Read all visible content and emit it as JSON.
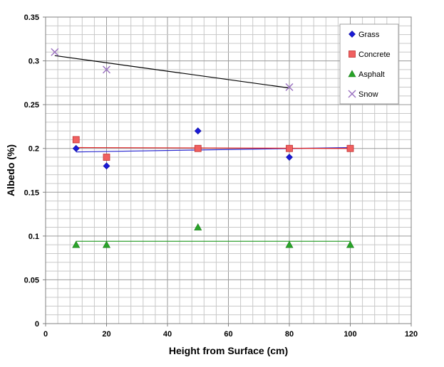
{
  "chart_data": {
    "type": "scatter",
    "title": "",
    "xlabel": "Height from Surface (cm)",
    "ylabel": "Albedo (%)",
    "xlim": [
      0,
      120
    ],
    "ylim": [
      0,
      0.35
    ],
    "x_major_ticks": [
      0,
      20,
      40,
      60,
      80,
      100,
      120
    ],
    "y_major_ticks": [
      0,
      0.05,
      0.1,
      0.15,
      0.2,
      0.25,
      0.3,
      0.35
    ],
    "x_tick_labels": [
      "0",
      "20",
      "40",
      "60",
      "80",
      "100",
      "120"
    ],
    "y_tick_labels": [
      "0",
      "0.05",
      "0.1",
      "0.15",
      "0.2",
      "0.25",
      "0.3",
      "0.35"
    ],
    "grid": true,
    "legend_position": "top-right",
    "series": [
      {
        "name": "Grass",
        "marker": "diamond",
        "color": "#1a1ad6",
        "points": [
          [
            10,
            0.2
          ],
          [
            20,
            0.18
          ],
          [
            50,
            0.22
          ],
          [
            80,
            0.19
          ],
          [
            100,
            0.2
          ]
        ],
        "trendline": [
          [
            10,
            0.196
          ],
          [
            100,
            0.201
          ]
        ],
        "trend_color": "#2a2ad0"
      },
      {
        "name": "Concrete",
        "marker": "square",
        "color": "#f06060",
        "points": [
          [
            10,
            0.21
          ],
          [
            20,
            0.19
          ],
          [
            50,
            0.2
          ],
          [
            80,
            0.2
          ],
          [
            100,
            0.2
          ]
        ],
        "trendline": [
          [
            10,
            0.201
          ],
          [
            100,
            0.2
          ]
        ],
        "trend_color": "#e02020"
      },
      {
        "name": "Asphalt",
        "marker": "triangle",
        "color": "#28a428",
        "points": [
          [
            10,
            0.09
          ],
          [
            20,
            0.09
          ],
          [
            50,
            0.11
          ],
          [
            80,
            0.09
          ],
          [
            100,
            0.09
          ]
        ],
        "trendline": [
          [
            10,
            0.094
          ],
          [
            100,
            0.094
          ]
        ],
        "trend_color": "#30a030"
      },
      {
        "name": "Snow",
        "marker": "x",
        "color": "#9a70c0",
        "points": [
          [
            3,
            0.31
          ],
          [
            20,
            0.29
          ],
          [
            80,
            0.27
          ]
        ],
        "trendline": [
          [
            3,
            0.306
          ],
          [
            80,
            0.269
          ]
        ],
        "trend_color": "#000000"
      }
    ]
  }
}
